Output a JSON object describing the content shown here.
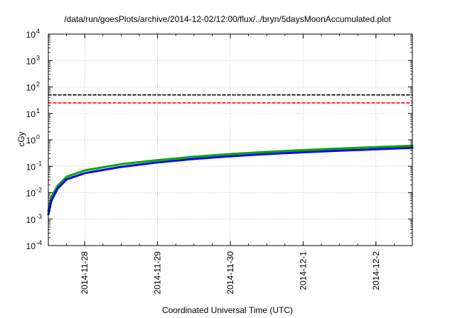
{
  "chart_data": {
    "type": "line",
    "title": "/data/run/goesPlots/archive/2014-12-02/12:00/flux/../bryn/5daysMoonAccumulated.plot",
    "xlabel": "Coordinated Universal Time (UTC)",
    "ylabel": "cGy",
    "yscale": "log",
    "ylim": [
      0.0001,
      10000
    ],
    "xlim": [
      "2014-11-27T12:00",
      "2014-12-02T12:00"
    ],
    "y_ticks": [
      {
        "base": "10",
        "exp": "-4"
      },
      {
        "base": "10",
        "exp": "-3"
      },
      {
        "base": "10",
        "exp": "-2"
      },
      {
        "base": "10",
        "exp": "-1"
      },
      {
        "base": "10",
        "exp": "0"
      },
      {
        "base": "10",
        "exp": "1"
      },
      {
        "base": "10",
        "exp": "2"
      },
      {
        "base": "10",
        "exp": "3"
      },
      {
        "base": "10",
        "exp": "4"
      }
    ],
    "x_ticks": [
      "2014-11-28",
      "2014-11-29",
      "2014-11-30",
      "2014-12-1",
      "2014-12-2"
    ],
    "grid": true,
    "series": [
      {
        "color": "#000000",
        "dashed": true,
        "x": [
          "2014-11-27T12:00",
          "2014-12-02T12:00"
        ],
        "y": [
          50,
          50
        ]
      },
      {
        "color": "#ff0000",
        "dashed": true,
        "x": [
          "2014-11-27T12:00",
          "2014-12-02T12:00"
        ],
        "y": [
          25,
          25
        ]
      },
      {
        "color": "#00aa00",
        "dashed": false,
        "x": [
          "2014-11-27T12:00",
          "2014-11-27T13:00",
          "2014-11-27T15:00",
          "2014-11-27T18:00",
          "2014-11-28T00:00",
          "2014-11-28T12:00",
          "2014-11-29T00:00",
          "2014-11-29T12:00",
          "2014-11-30T00:00",
          "2014-11-30T12:00",
          "2014-12-01T00:00",
          "2014-12-01T12:00",
          "2014-12-02T00:00",
          "2014-12-02T12:00"
        ],
        "y": [
          0.002,
          0.007,
          0.018,
          0.04,
          0.07,
          0.12,
          0.17,
          0.23,
          0.29,
          0.35,
          0.41,
          0.47,
          0.53,
          0.6
        ]
      },
      {
        "color": "#0000ff",
        "dashed": false,
        "x": [
          "2014-11-27T12:00",
          "2014-11-27T13:00",
          "2014-11-27T15:00",
          "2014-11-27T18:00",
          "2014-11-28T00:00",
          "2014-11-28T12:00",
          "2014-11-29T00:00",
          "2014-11-29T12:00",
          "2014-11-30T00:00",
          "2014-11-30T12:00",
          "2014-12-01T00:00",
          "2014-12-01T12:00",
          "2014-12-02T00:00",
          "2014-12-02T12:00"
        ],
        "y": [
          0.0015,
          0.005,
          0.014,
          0.032,
          0.055,
          0.095,
          0.14,
          0.19,
          0.24,
          0.29,
          0.34,
          0.39,
          0.44,
          0.5
        ]
      }
    ]
  }
}
